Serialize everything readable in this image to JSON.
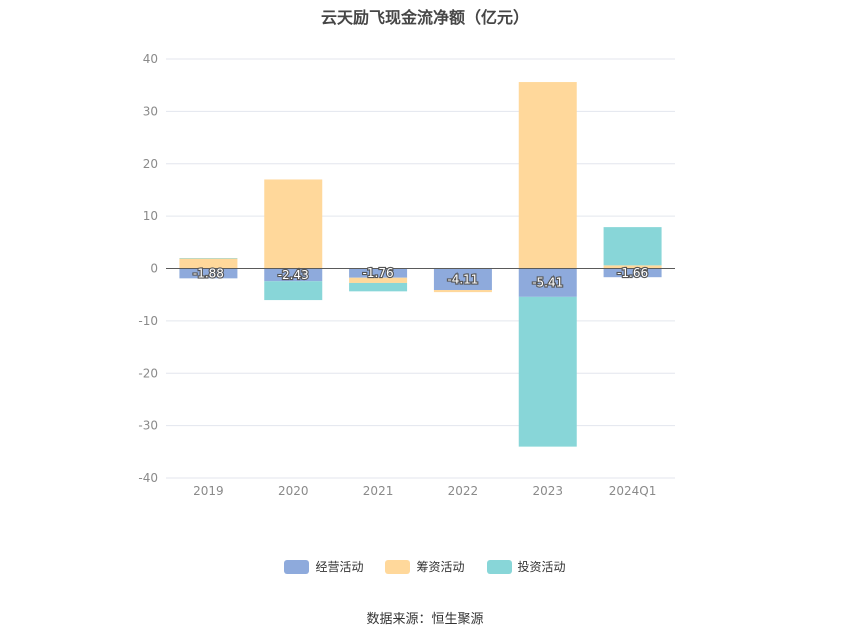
{
  "chart_data": {
    "type": "bar",
    "stacked": true,
    "title": "云天励飞现金流净额（亿元）",
    "categories": [
      "2019",
      "2020",
      "2021",
      "2022",
      "2023",
      "2024Q1"
    ],
    "ylim": [
      -40,
      40
    ],
    "yticks": [
      40,
      30,
      20,
      10,
      0,
      -10,
      -20,
      -30,
      -40
    ],
    "grid": true,
    "legend_position": "bottom",
    "series": [
      {
        "name": "经营活动",
        "color": "#8eaadc",
        "values": [
          -1.88,
          -2.43,
          -1.76,
          -4.11,
          -5.41,
          -1.66
        ],
        "labels": [
          "-1.88",
          "-2.43",
          "-1.76",
          "-4.11",
          "-5.41",
          "-1.66"
        ]
      },
      {
        "name": "筹资活动",
        "color": "#ffd89b",
        "values": [
          1.9,
          17.0,
          -1.0,
          -0.4,
          35.6,
          0.6
        ]
      },
      {
        "name": "投资活动",
        "color": "#88d6d8",
        "values": [
          0.1,
          -3.6,
          -1.6,
          0.1,
          -28.6,
          7.3
        ]
      }
    ]
  },
  "source": "数据来源：恒生聚源"
}
